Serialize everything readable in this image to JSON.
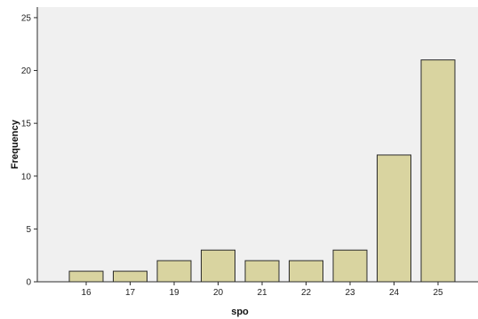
{
  "chart_data": {
    "type": "bar",
    "categories": [
      "16",
      "17",
      "19",
      "20",
      "21",
      "22",
      "23",
      "24",
      "25"
    ],
    "values": [
      1,
      1,
      2,
      3,
      2,
      2,
      3,
      12,
      21
    ],
    "title": "",
    "xlabel": "spo",
    "ylabel": "Frequency",
    "ylim": [
      0,
      26
    ],
    "yticks": [
      0,
      5,
      10,
      15,
      20,
      25
    ],
    "grid": false,
    "colors": {
      "bar_fill": "#d9d4a0",
      "bar_stroke": "#2b2b2b",
      "plot_background": "#f0f0f0",
      "axis": "#2b2b2b"
    }
  }
}
